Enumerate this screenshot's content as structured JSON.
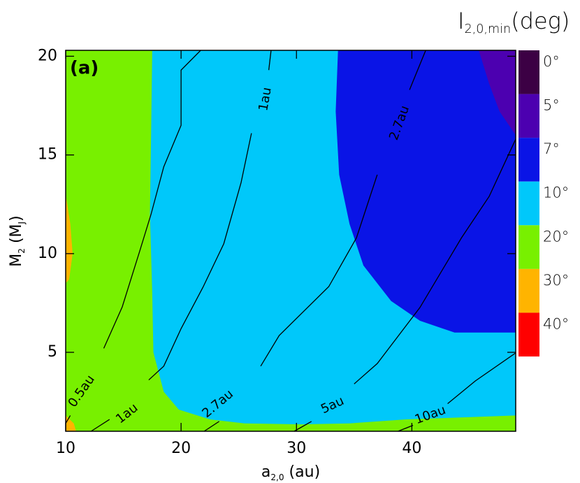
{
  "chart_data": {
    "type": "contour",
    "panel_label": "(a)",
    "title_parts": [
      "I",
      "2,0,min",
      "(deg)"
    ],
    "xlabel_parts": [
      "a",
      "2,0",
      " (au)"
    ],
    "ylabel_parts": [
      "M",
      "2",
      " (M",
      "J",
      ")"
    ],
    "xlim": [
      10,
      49
    ],
    "ylim": [
      1,
      20.3
    ],
    "xticks": [
      10,
      20,
      30,
      40
    ],
    "yticks": [
      5,
      10,
      15,
      20
    ],
    "levels": [
      {
        "value": 0,
        "label": "0°",
        "color": "#3c0044",
        "areas": []
      },
      {
        "value": 5,
        "label": "5°",
        "color": "#4c00b0",
        "areas": [
          {
            "x": [
              45.8,
              46.7,
              47.6,
              49,
              49
            ],
            "y": [
              20.3,
              18.6,
              17.2,
              16,
              20.3
            ]
          }
        ]
      },
      {
        "value": 7,
        "label": "7°",
        "color": "#0a14e6",
        "areas": [
          {
            "x": [
              33.6,
              33.4,
              33.7,
              34.6,
              35.8,
              38.2,
              40.7,
              43.7,
              49,
              49
            ],
            "y": [
              20.3,
              17.2,
              14,
              11.5,
              9.4,
              7.6,
              6.6,
              6,
              6,
              20.3
            ]
          }
        ]
      },
      {
        "value": 10,
        "label": "10°",
        "color": "#00c8fa",
        "areas": [
          {
            "x": [
              17.5,
              17.4,
              17.3,
              17.5,
              17.6,
              18.5,
              19.8,
              22.5,
              25.5,
              30.4,
              34.6,
              39.5,
              49,
              49
            ],
            "y": [
              20.3,
              16,
              12,
              8,
              5,
              3,
              2.1,
              1.6,
              1.4,
              1.35,
              1.4,
              1.6,
              1.8,
              20.3
            ]
          }
        ]
      },
      {
        "value": 20,
        "label": "20°",
        "color": "#78f000",
        "areas": [
          {
            "x": [
              10,
              49,
              49,
              10
            ],
            "y": [
              1,
              1,
              20.3,
              20.3
            ]
          }
        ]
      },
      {
        "value": 30,
        "label": "30°",
        "color": "#ffb400",
        "areas": [
          {
            "x": [
              10,
              10.4,
              10.6,
              10.3,
              10
            ],
            "y": [
              13,
              11.5,
              10,
              8.7,
              8.5
            ]
          },
          {
            "x": [
              10,
              10.7,
              10.9,
              10
            ],
            "y": [
              1.8,
              1.4,
              1,
              1
            ]
          }
        ]
      },
      {
        "value": 40,
        "label": "40°",
        "color": "#ff0000",
        "areas": []
      }
    ],
    "contours": [
      {
        "label": "0.5au",
        "x": [
          10,
          10.4,
          null,
          13.3,
          14.9,
          16.4,
          17.4,
          18.5,
          20,
          20,
          21.7
        ],
        "y": [
          1.4,
          1.8,
          null,
          5.2,
          7.3,
          10.1,
          12,
          14.4,
          16.5,
          19.3,
          20.3
        ]
      },
      {
        "label": "1au",
        "x": [
          12.2,
          13.8,
          null,
          17.2,
          18.5,
          20,
          21.9,
          23.7,
          25.2,
          26.1,
          null,
          27.6,
          27.8
        ],
        "y": [
          1,
          1.6,
          null,
          3.6,
          4.3,
          6.2,
          8.3,
          10.5,
          13.6,
          16.1,
          null,
          19.3,
          20.3
        ]
      },
      {
        "label": "2.7au",
        "x": [
          22,
          23.3,
          null,
          26.9,
          28.5,
          32.8,
          35.2,
          37,
          null,
          39.8,
          41.2
        ],
        "y": [
          1,
          1.5,
          null,
          4.3,
          5.85,
          8.33,
          10.8,
          14,
          null,
          18.3,
          20.3
        ]
      },
      {
        "label": "5au",
        "x": [
          29.8,
          31.3,
          null,
          35,
          37,
          40.7,
          44.3,
          46.7,
          49
        ],
        "y": [
          1,
          1.5,
          null,
          3.4,
          4.43,
          7.27,
          10.8,
          12.9,
          15.8
        ]
      },
      {
        "label": "10au",
        "x": [
          38.8,
          40.1,
          null,
          43.1,
          45.5,
          49
        ],
        "y": [
          1,
          1.3,
          null,
          2.4,
          3.55,
          4.97
        ]
      }
    ]
  }
}
